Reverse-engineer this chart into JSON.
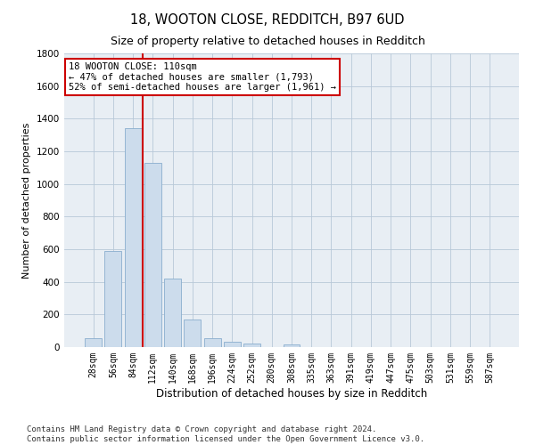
{
  "title": "18, WOOTON CLOSE, REDDITCH, B97 6UD",
  "subtitle": "Size of property relative to detached houses in Redditch",
  "xlabel": "Distribution of detached houses by size in Redditch",
  "ylabel": "Number of detached properties",
  "bar_color": "#ccdcec",
  "bar_edge_color": "#8aaece",
  "grid_color": "#b8c8d8",
  "background_color": "#e8eef4",
  "categories": [
    "28sqm",
    "56sqm",
    "84sqm",
    "112sqm",
    "140sqm",
    "168sqm",
    "196sqm",
    "224sqm",
    "252sqm",
    "280sqm",
    "308sqm",
    "335sqm",
    "363sqm",
    "391sqm",
    "419sqm",
    "447sqm",
    "475sqm",
    "503sqm",
    "531sqm",
    "559sqm",
    "587sqm"
  ],
  "values": [
    55,
    590,
    1340,
    1130,
    420,
    170,
    55,
    35,
    20,
    0,
    15,
    0,
    0,
    0,
    0,
    0,
    0,
    0,
    0,
    0,
    0
  ],
  "ylim": [
    0,
    1800
  ],
  "yticks": [
    0,
    200,
    400,
    600,
    800,
    1000,
    1200,
    1400,
    1600,
    1800
  ],
  "property_line_x": 3.0,
  "annotation_text": "18 WOOTON CLOSE: 110sqm\n← 47% of detached houses are smaller (1,793)\n52% of semi-detached houses are larger (1,961) →",
  "vline_color": "#cc0000",
  "annotation_box_edge": "#cc0000",
  "footnote": "Contains HM Land Registry data © Crown copyright and database right 2024.\nContains public sector information licensed under the Open Government Licence v3.0.",
  "figsize": [
    6.0,
    5.0
  ],
  "dpi": 100
}
